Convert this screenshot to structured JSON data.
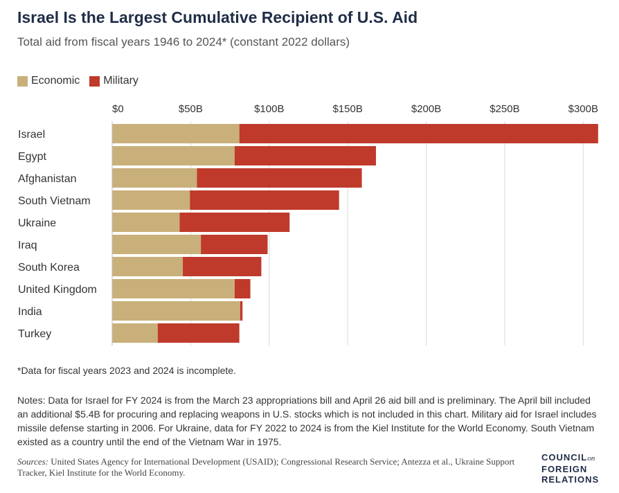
{
  "chart_data": {
    "type": "bar",
    "orientation": "horizontal",
    "stacked": true,
    "title": "Israel Is the Largest Cumulative Recipient of U.S. Aid",
    "subtitle": "Total aid from fiscal years 1946 to 2024* (constant 2022 dollars)",
    "xlabel": "",
    "ylabel": "",
    "xlim": [
      0,
      310
    ],
    "x_ticks": [
      0,
      50,
      100,
      150,
      200,
      250,
      300
    ],
    "x_tick_labels": [
      "$0",
      "$50B",
      "$100B",
      "$150B",
      "$200B",
      "$250B",
      "$300B"
    ],
    "categories": [
      "Israel",
      "Egypt",
      "Afghanistan",
      "South Vietnam",
      "Ukraine",
      "Iraq",
      "South Korea",
      "United Kingdom",
      "India",
      "Turkey"
    ],
    "series": [
      {
        "name": "Economic",
        "color": "#c9b07a",
        "values": [
          81,
          78,
          54,
          49.5,
          43,
          56.5,
          45,
          78,
          81.5,
          29
        ]
      },
      {
        "name": "Military",
        "color": "#bf3a2b",
        "values": [
          228.5,
          90,
          105,
          95,
          70,
          42.5,
          50,
          10,
          1.5,
          52
        ]
      }
    ],
    "legend_position": "top-left",
    "grid": "vertical"
  },
  "footnote": "*Data for fiscal years 2023 and 2024 is incomplete.",
  "notes": "Notes: Data for Israel for FY 2024 is from the March 23 appropriations bill and April 26 aid bill and is preliminary. The April bill included an additional $5.4B for procuring and replacing weapons in U.S. stocks which is not included in this chart. Military aid for Israel includes missile defense starting in 2006. For Ukraine, data for FY 2022 to 2024 is from the Kiel Institute for the World Economy. South Vietnam existed as a country until the end of the Vietnam War in 1975.",
  "sources_label": "Sources:",
  "sources_text": " United States Agency for International Development (USAID); Congressional Research Service; Antezza et al., Ukraine Support Tracker, Kiel Institute for the World Economy.",
  "logo": {
    "line1": "COUNCIL",
    "on": "on",
    "line2": "FOREIGN",
    "line3": "RELATIONS"
  }
}
